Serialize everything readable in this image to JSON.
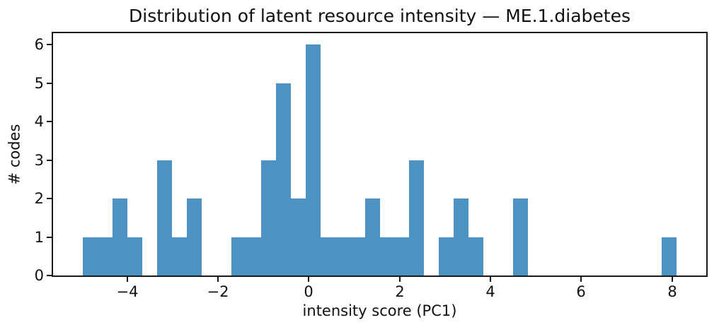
{
  "figure": {
    "background": "#ffffff"
  },
  "chart_data": {
    "type": "bar",
    "subtype": "histogram",
    "title": "Distribution of latent resource intensity — ME.1.diabetes",
    "xlabel": "intensity score (PC1)",
    "ylabel": "# codes",
    "bar_color": "#4c92c3",
    "spine_color": "#1a1a1a",
    "text_color": "#111111",
    "grid": false,
    "legend": null,
    "bins": {
      "start": -4.98,
      "width": 0.327,
      "count": 40
    },
    "counts": [
      1,
      1,
      2,
      1,
      0,
      3,
      1,
      2,
      0,
      0,
      1,
      1,
      3,
      5,
      2,
      6,
      1,
      1,
      1,
      2,
      1,
      1,
      3,
      0,
      1,
      2,
      1,
      0,
      0,
      2,
      0,
      0,
      0,
      0,
      0,
      0,
      0,
      0,
      0,
      1
    ],
    "xlim": [
      -5.634,
      8.754
    ],
    "ylim": [
      0,
      6.3
    ],
    "xticks": {
      "values": [
        -4,
        -2,
        0,
        2,
        4,
        6,
        8
      ],
      "labels": [
        "−4",
        "−2",
        "0",
        "2",
        "4",
        "6",
        "8"
      ]
    },
    "yticks": {
      "values": [
        0,
        1,
        2,
        3,
        4,
        5,
        6
      ],
      "labels": [
        "0",
        "1",
        "2",
        "3",
        "4",
        "5",
        "6"
      ]
    }
  }
}
